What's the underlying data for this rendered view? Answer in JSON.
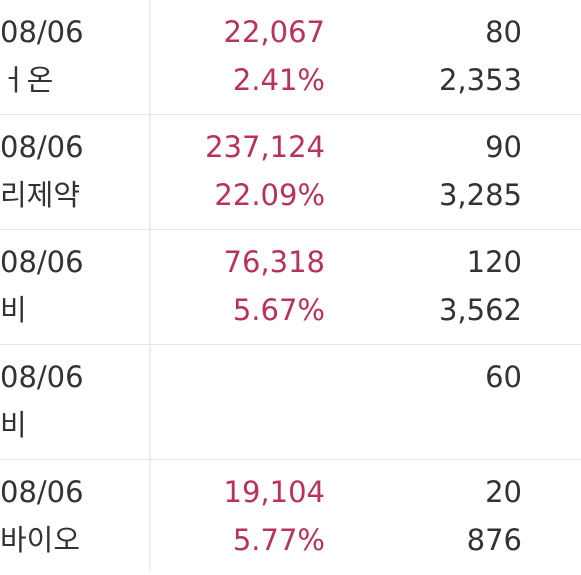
{
  "colors": {
    "accent_red": "#b8325a",
    "text": "#333333",
    "divider": "#e6e6e6"
  },
  "rows": [
    {
      "date": "08/06",
      "name": "ㅓ온",
      "value": "22,067",
      "pct": "2.41%",
      "count": "80",
      "total": "2,353"
    },
    {
      "date": "08/06",
      "name": "리제약",
      "value": "237,124",
      "pct": "22.09%",
      "count": "90",
      "total": "3,285"
    },
    {
      "date": "08/06",
      "name": "비",
      "value": "76,318",
      "pct": "5.67%",
      "count": "120",
      "total": "3,562"
    },
    {
      "date": "08/06",
      "name": "비",
      "value": "",
      "pct": "",
      "count": "60",
      "total": ""
    },
    {
      "date": "08/06",
      "name": "바이오",
      "value": "19,104",
      "pct": "5.77%",
      "count": "20",
      "total": "876"
    }
  ]
}
